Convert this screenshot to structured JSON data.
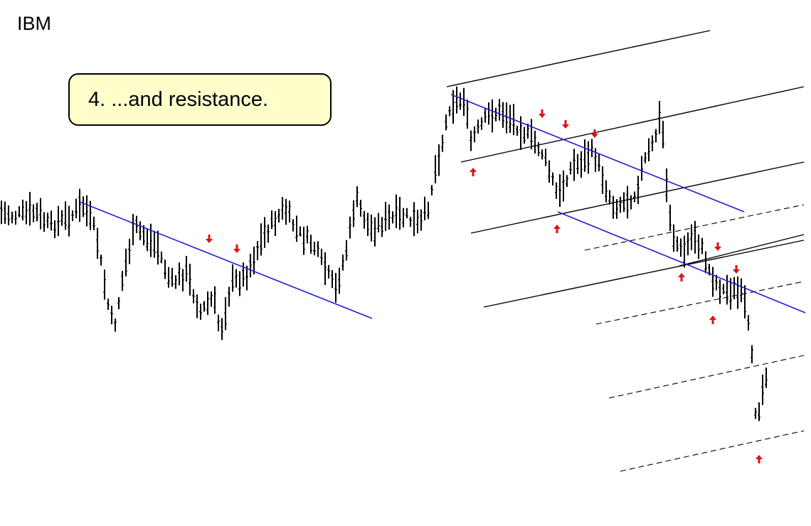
{
  "ticker": "IBM",
  "callout": {
    "text": "4. ...and resistance."
  },
  "colors": {
    "bars": "#000000",
    "trendline": "#1f1fd6",
    "arrow": "#e01010",
    "channel": "#000000",
    "callout_fill": "#ffffcc"
  },
  "chart_data": {
    "type": "ohlc-bar",
    "title": "",
    "xlabel": "",
    "ylabel": "",
    "grid": false,
    "legend": "none",
    "trendlines": [
      {
        "style": "solid-blue",
        "role": "resistance",
        "touches": 4
      },
      {
        "style": "solid-blue",
        "role": "resistance",
        "touches": 3
      },
      {
        "style": "solid-blue",
        "role": "support",
        "touches": 2
      }
    ],
    "channel_lines": {
      "solid": 5,
      "dashed": 6
    },
    "arrows": {
      "down": 7,
      "up": 5
    }
  }
}
